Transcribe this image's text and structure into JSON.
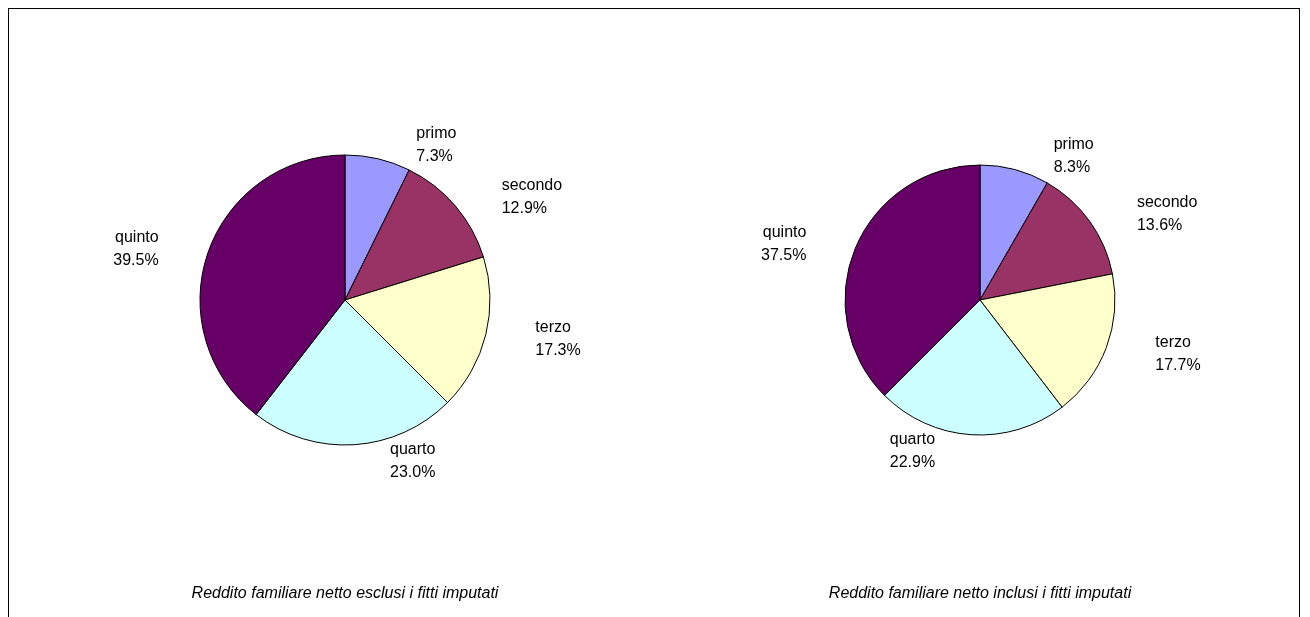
{
  "chart_data": [
    {
      "type": "pie",
      "title": "Reddito familiare netto esclusi i fitti imputati",
      "categories": [
        "primo",
        "secondo",
        "terzo",
        "quarto",
        "quinto"
      ],
      "values": [
        7.3,
        12.9,
        17.3,
        23.0,
        39.5
      ],
      "value_labels": [
        "7.3%",
        "12.9%",
        "17.3%",
        "23.0%",
        "39.5%"
      ],
      "colors": [
        "#9999ff",
        "#993366",
        "#ffffcc",
        "#ccffff",
        "#660066"
      ],
      "legend": false
    },
    {
      "type": "pie",
      "title": "Reddito familiare netto inclusi i fitti imputati",
      "categories": [
        "primo",
        "secondo",
        "terzo",
        "quarto",
        "quinto"
      ],
      "values": [
        8.3,
        13.6,
        17.7,
        22.9,
        37.5
      ],
      "value_labels": [
        "8.3%",
        "13.6%",
        "17.7%",
        "22.9%",
        "37.5%"
      ],
      "colors": [
        "#9999ff",
        "#993366",
        "#ffffcc",
        "#ccffff",
        "#660066"
      ],
      "legend": false
    }
  ]
}
